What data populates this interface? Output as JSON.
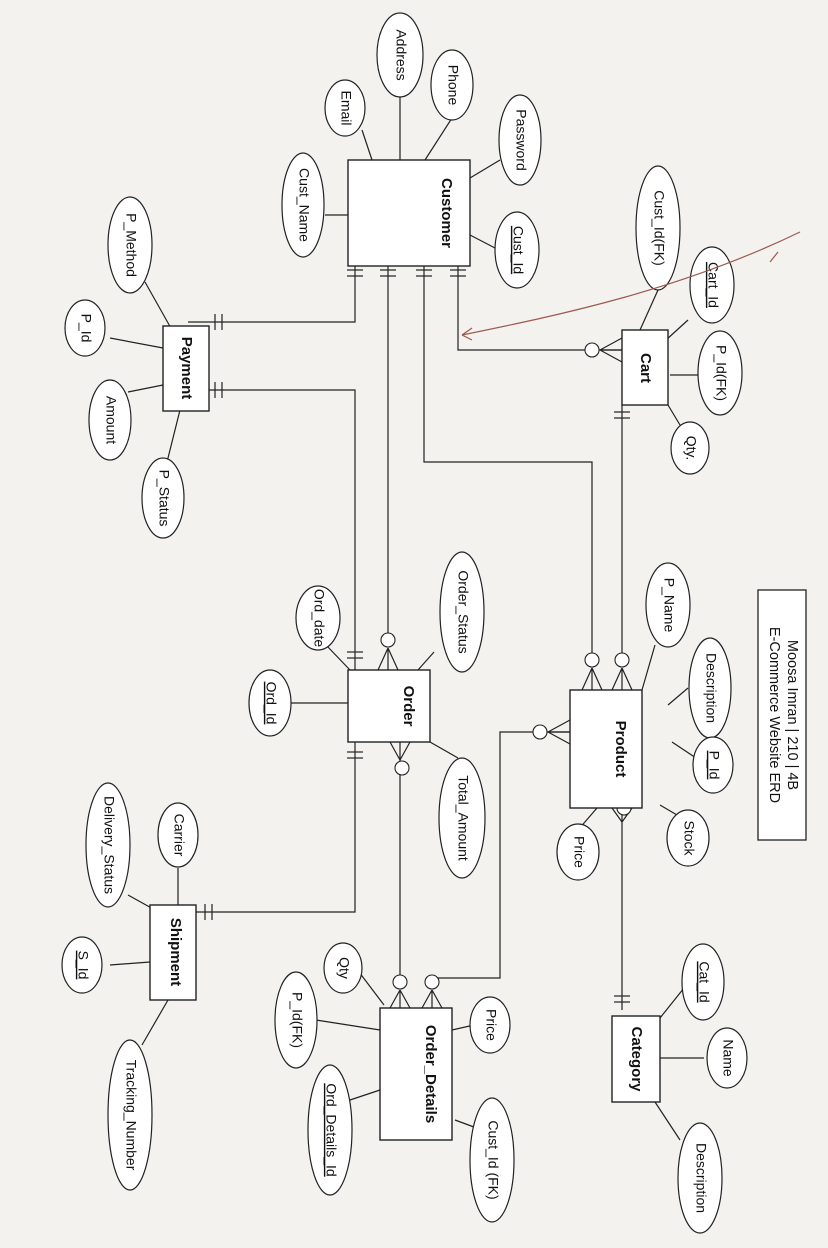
{
  "entities": {
    "customer": "Customer",
    "cart": "Cart",
    "payment": "Payment",
    "order": "Order",
    "product": "Product",
    "category": "Category",
    "shipment": "Shipment",
    "order_details": "Order_Details"
  },
  "attributes": {
    "customer": [
      "Address",
      "Phone",
      "Email",
      "Password",
      "Cust_Name",
      "Cust_Id"
    ],
    "cart": [
      "Cust_Id(FK)",
      "Cart_Id",
      "P_Id(FK)",
      "Qty."
    ],
    "payment": [
      "P_Method",
      "P_Id",
      "Amount",
      "P_Status"
    ],
    "order": [
      "Ord_date",
      "Order_Status",
      "Ord_Id",
      "Total_Amount"
    ],
    "product": [
      "P_Name",
      "Description",
      "P_Id",
      "Price",
      "Stock"
    ],
    "shipment": [
      "Carrier",
      "Delivery_Status",
      "S_Id",
      "Tracking_Number"
    ],
    "order_details": [
      "Qty",
      "Price",
      "P_Id(FK)",
      "Ord_Details_Id",
      "Cust_Id (FK)"
    ],
    "category": [
      "Cat_Id",
      "Name",
      "Description"
    ]
  },
  "title_box": {
    "line1": "Moosa Imran | 210 | 4B",
    "line2": "E-Commerce Website ERD"
  },
  "colors": {
    "ink": "#222222",
    "paper": "#f3f2ee",
    "pen_mark": "#9a5a4e"
  }
}
